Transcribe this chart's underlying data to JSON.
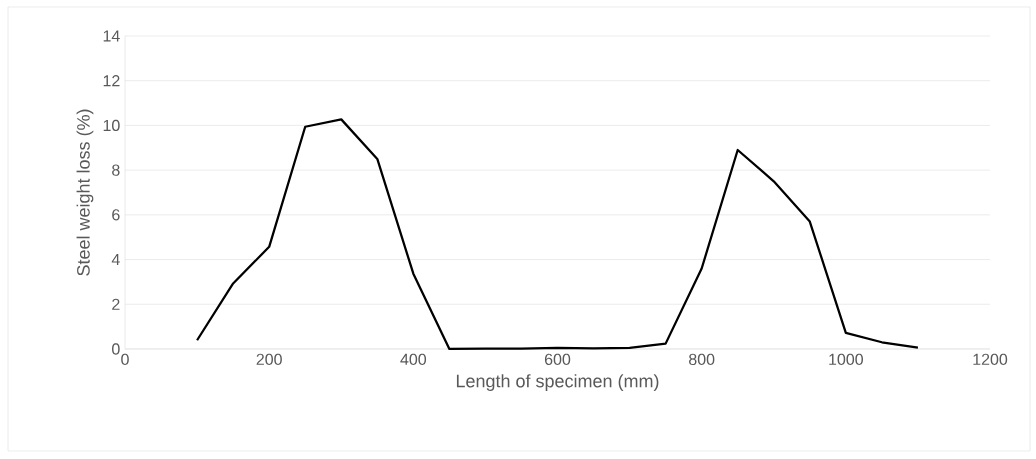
{
  "chart_data": {
    "type": "line",
    "xlabel": "Length of specimen (mm)",
    "ylabel": "Steel weight loss (%)",
    "x": [
      100,
      150,
      200,
      250,
      300,
      350,
      400,
      450,
      500,
      550,
      600,
      650,
      700,
      750,
      800,
      850,
      900,
      950,
      1000,
      1050,
      1100
    ],
    "series": [
      {
        "color": "#000000",
        "values": [
          0.39,
          2.93,
          4.57,
          9.94,
          10.27,
          8.5,
          3.37,
          0,
          0.02,
          0.02,
          0.05,
          0.03,
          0.05,
          0.24,
          3.6,
          8.9,
          7.5,
          5.7,
          0.72,
          0.3,
          0.06
        ]
      }
    ],
    "xlim": [
      0,
      1200
    ],
    "xticks": [
      0,
      200,
      400,
      600,
      800,
      1000,
      1200
    ],
    "ylim": [
      0,
      14
    ],
    "yticks": [
      0,
      2,
      4,
      6,
      8,
      10,
      12,
      14
    ],
    "grid": "y",
    "marker": "none",
    "line_style": "solid"
  }
}
